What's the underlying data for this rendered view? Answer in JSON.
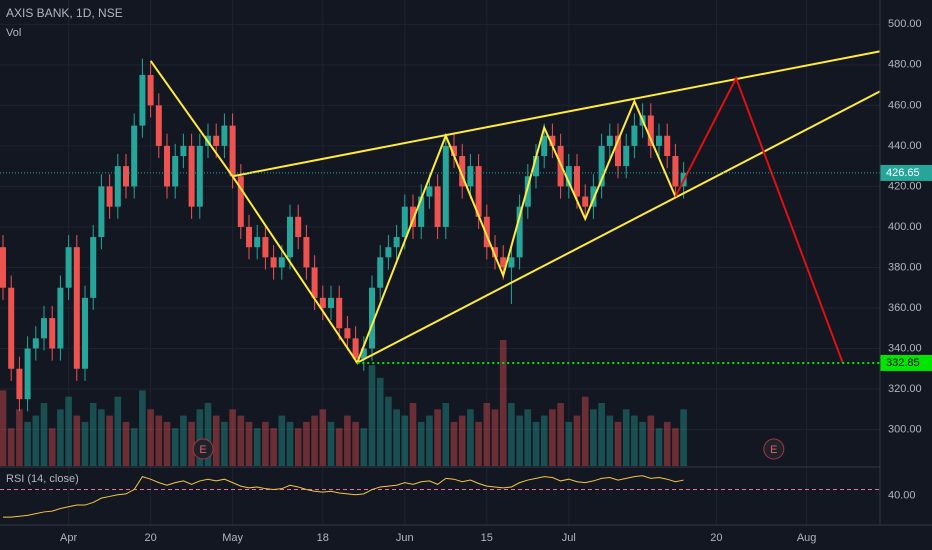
{
  "chart_data": {
    "type": "candlestick",
    "title": "AXIS BANK, 1D, NSE",
    "volume_label": "Vol",
    "rsi_label": "RSI (14, close)",
    "up_color": "#26a69a",
    "down_color": "#ef5350",
    "open": [
      390,
      370,
      330,
      315,
      340,
      345,
      355,
      340,
      370,
      390,
      330,
      365,
      395,
      420,
      410,
      430,
      420,
      450,
      475,
      460,
      440,
      420,
      435,
      440,
      410,
      440,
      445,
      440,
      450,
      425,
      400,
      390,
      395,
      385,
      380,
      385,
      405,
      395,
      380,
      365,
      360,
      365,
      350,
      345,
      335,
      340,
      370,
      385,
      390,
      395,
      410,
      400,
      415,
      420,
      400,
      440,
      435,
      420,
      430,
      405,
      390,
      385,
      380,
      385,
      410,
      425,
      435,
      445,
      440,
      420,
      430,
      415,
      410,
      420,
      440,
      445,
      430,
      440,
      450,
      455,
      440,
      445,
      435,
      420
    ],
    "high": [
      396,
      376,
      336,
      346,
      351,
      361,
      361,
      376,
      396,
      396,
      371,
      401,
      426,
      426,
      436,
      436,
      456,
      483,
      481,
      466,
      446,
      441,
      446,
      446,
      446,
      451,
      451,
      456,
      456,
      431,
      406,
      401,
      401,
      391,
      391,
      411,
      411,
      401,
      386,
      371,
      371,
      371,
      356,
      351,
      346,
      376,
      391,
      396,
      401,
      416,
      416,
      421,
      426,
      426,
      446,
      446,
      441,
      436,
      436,
      411,
      396,
      391,
      391,
      416,
      431,
      441,
      451,
      451,
      446,
      436,
      436,
      421,
      426,
      446,
      451,
      451,
      446,
      456,
      461,
      461,
      451,
      451,
      441,
      432
    ],
    "low": [
      364,
      324,
      309,
      309,
      334,
      339,
      334,
      334,
      364,
      324,
      324,
      359,
      389,
      404,
      404,
      414,
      414,
      444,
      454,
      434,
      414,
      414,
      429,
      404,
      404,
      434,
      434,
      434,
      419,
      394,
      384,
      384,
      379,
      374,
      374,
      379,
      389,
      374,
      359,
      354,
      354,
      344,
      339,
      333,
      329,
      334,
      364,
      379,
      384,
      389,
      394,
      394,
      409,
      394,
      394,
      429,
      414,
      414,
      399,
      384,
      379,
      374,
      362,
      379,
      404,
      419,
      429,
      434,
      414,
      414,
      409,
      404,
      404,
      414,
      434,
      424,
      424,
      434,
      444,
      434,
      434,
      429,
      414,
      414
    ],
    "close": [
      370,
      330,
      315,
      340,
      345,
      355,
      340,
      370,
      390,
      330,
      365,
      395,
      420,
      410,
      430,
      420,
      450,
      475,
      460,
      440,
      420,
      435,
      440,
      410,
      440,
      445,
      440,
      450,
      425,
      400,
      390,
      395,
      385,
      380,
      385,
      405,
      395,
      380,
      365,
      360,
      365,
      350,
      345,
      335,
      340,
      370,
      385,
      390,
      395,
      410,
      400,
      415,
      420,
      400,
      440,
      435,
      420,
      430,
      405,
      390,
      385,
      380,
      385,
      410,
      425,
      435,
      445,
      440,
      420,
      430,
      415,
      410,
      420,
      440,
      445,
      430,
      440,
      450,
      455,
      440,
      445,
      435,
      420,
      426.65
    ],
    "volume": [
      60,
      30,
      45,
      35,
      40,
      50,
      30,
      45,
      55,
      40,
      35,
      50,
      45,
      40,
      55,
      35,
      30,
      60,
      45,
      40,
      35,
      30,
      40,
      35,
      45,
      50,
      40,
      35,
      45,
      40,
      35,
      30,
      35,
      30,
      40,
      35,
      30,
      35,
      40,
      45,
      35,
      30,
      40,
      35,
      30,
      80,
      70,
      55,
      45,
      40,
      50,
      35,
      40,
      45,
      50,
      35,
      40,
      45,
      35,
      50,
      45,
      100,
      50,
      40,
      45,
      35,
      40,
      45,
      50,
      35,
      40,
      55,
      45,
      50,
      40,
      35,
      45,
      40,
      35,
      40,
      30,
      35,
      30,
      45
    ],
    "rsi": [
      8,
      8,
      9,
      10,
      12,
      14,
      15,
      18,
      20,
      22,
      22,
      25,
      30,
      32,
      34,
      35,
      40,
      55,
      52,
      48,
      45,
      48,
      50,
      46,
      50,
      52,
      50,
      52,
      48,
      44,
      42,
      43,
      41,
      40,
      41,
      45,
      43,
      40,
      38,
      37,
      38,
      36,
      35,
      34,
      35,
      40,
      43,
      44,
      45,
      48,
      46,
      49,
      50,
      46,
      53,
      52,
      49,
      51,
      47,
      44,
      43,
      42,
      43,
      48,
      51,
      53,
      55,
      54,
      50,
      52,
      49,
      48,
      50,
      53,
      54,
      51,
      53,
      55,
      56,
      53,
      54,
      52,
      49,
      51
    ],
    "xlim": [
      -0.366,
      106.95
    ],
    "ylim": [
      282,
      512
    ],
    "yticks": [
      {
        "value": 300,
        "label": "300.00"
      },
      {
        "value": 320,
        "label": "320.00"
      },
      {
        "value": 340,
        "label": "340.00"
      },
      {
        "value": 360,
        "label": "360.00"
      },
      {
        "value": 380,
        "label": "380.00"
      },
      {
        "value": 400,
        "label": "400.00"
      },
      {
        "value": 420,
        "label": "420.00"
      },
      {
        "value": 440,
        "label": "440.00"
      },
      {
        "value": 460,
        "label": "460.00"
      },
      {
        "value": 480,
        "label": "480.00"
      },
      {
        "value": 500,
        "label": "500.00"
      }
    ],
    "xticks": [
      {
        "value": 8,
        "label": "Apr"
      },
      {
        "value": 18,
        "label": "20"
      },
      {
        "value": 28,
        "label": "May"
      },
      {
        "value": 39,
        "label": "18"
      },
      {
        "value": 49,
        "label": "Jun"
      },
      {
        "value": 59,
        "label": "15"
      },
      {
        "value": 69,
        "label": "Jul"
      },
      {
        "value": 87,
        "label": "20"
      },
      {
        "value": 98,
        "label": "Aug"
      }
    ],
    "rsi_lim": [
      0,
      65
    ],
    "rsi_ticks": [
      {
        "value": 40,
        "label": "40.00"
      }
    ],
    "last_price": 426.65,
    "last_color": "#26a69a",
    "target": 332.85,
    "target_color": "#00e600",
    "events": [
      {
        "label": "E",
        "x": 24.4
      },
      {
        "label": "E",
        "x": 94
      }
    ],
    "drawings": [
      {
        "color": "#ffeb3b",
        "x": [
          18,
          28,
          43.2,
          54,
          61,
          66,
          71,
          77,
          82
        ],
        "y": [
          482,
          425,
          333,
          445,
          376,
          449,
          404,
          462,
          415
        ]
      },
      {
        "color": "#ffeb3b",
        "x": [
          28,
          107
        ],
        "y": [
          425,
          486.7
        ]
      },
      {
        "color": "#ffeb3b",
        "x": [
          43.2,
          107
        ],
        "y": [
          333,
          467
        ]
      },
      {
        "color": "#e01010",
        "x": [
          82,
          89.4,
          102.4
        ],
        "y": [
          415,
          473.4,
          333
        ]
      }
    ]
  }
}
